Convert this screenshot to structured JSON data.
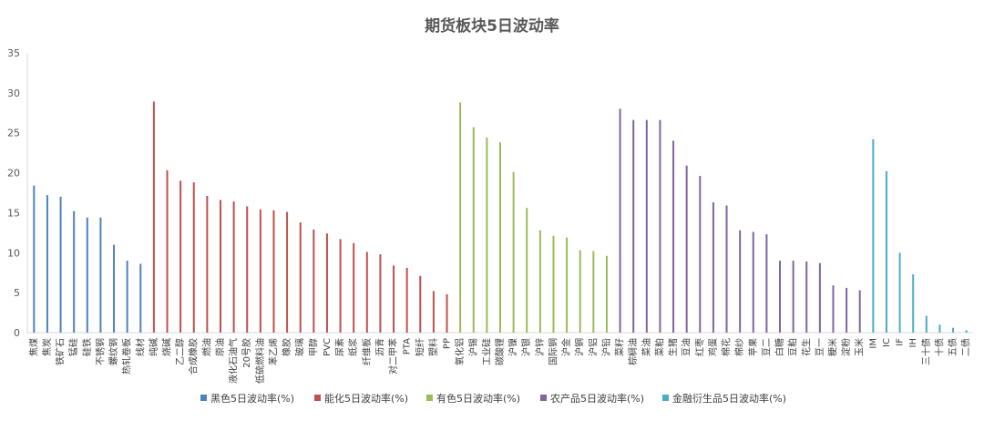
{
  "chart_data": {
    "type": "bar",
    "title": "期货板块5日波动率",
    "xlabel": "",
    "ylabel": "",
    "ylim": [
      0,
      35
    ],
    "yticks": [
      0,
      5,
      10,
      15,
      20,
      25,
      30,
      35
    ],
    "grid": false,
    "legend_position": "bottom",
    "series": [
      {
        "name": "黑色5日波动率(%)",
        "color": "#4F81BD",
        "categories": [
          "焦煤",
          "焦炭",
          "铁矿石",
          "锰硅",
          "硅铁",
          "不锈钢",
          "螺纹钢",
          "热轧卷板",
          "线材"
        ],
        "values": [
          18.4,
          17.2,
          17.0,
          15.2,
          14.4,
          14.4,
          11.0,
          9.0,
          8.6
        ]
      },
      {
        "name": "能化5日波动率(%)",
        "color": "#C0504D",
        "categories": [
          "纯碱",
          "烧碱",
          "乙二醇",
          "合成橡胶",
          "燃油",
          "原油",
          "液化石油气",
          "20号胶",
          "低硫燃料油",
          "苯乙烯",
          "橡胶",
          "玻璃",
          "甲醇",
          "PVC",
          "尿素",
          "纸浆",
          "纤维板",
          "沥青",
          "对二甲苯",
          "PTA",
          "短纤",
          "塑料",
          "PP"
        ],
        "values": [
          28.9,
          20.3,
          19.0,
          18.8,
          17.1,
          16.6,
          16.4,
          15.8,
          15.4,
          15.3,
          15.1,
          13.8,
          12.9,
          12.4,
          11.7,
          11.2,
          10.1,
          9.8,
          8.4,
          8.1,
          7.1,
          5.2,
          4.8
        ]
      },
      {
        "name": "有色5日波动率(%)",
        "color": "#9BBB59",
        "categories": [
          "氧化铝",
          "沪锡",
          "工业硅",
          "碳酸锂",
          "沪镍",
          "沪银",
          "沪锌",
          "国际铜",
          "沪金",
          "沪铜",
          "沪铝",
          "沪铅"
        ],
        "values": [
          28.8,
          25.7,
          24.4,
          23.8,
          20.1,
          15.6,
          12.8,
          12.1,
          11.9,
          10.3,
          10.2,
          9.6
        ]
      },
      {
        "name": "农产品5日波动率(%)",
        "color": "#8064A2",
        "categories": [
          "菜籽",
          "棕榈油",
          "菜油",
          "菜粕",
          "生猪",
          "豆油",
          "红枣",
          "鸡蛋",
          "棉花",
          "棉纱",
          "苹果",
          "豆二",
          "白糖",
          "豆粕",
          "花生",
          "豆一",
          "粳米",
          "淀粉",
          "玉米"
        ],
        "values": [
          28.0,
          26.6,
          26.6,
          26.6,
          24.0,
          20.9,
          19.6,
          16.3,
          15.9,
          12.8,
          12.6,
          12.3,
          9.0,
          9.0,
          8.9,
          8.7,
          5.9,
          5.6,
          5.3
        ]
      },
      {
        "name": "金融衍生品5日波动率(%)",
        "color": "#4BACC6",
        "categories": [
          "IM",
          "IC",
          "IF",
          "IH",
          "三十债",
          "十债",
          "五债",
          "二债"
        ],
        "values": [
          24.2,
          20.2,
          10.0,
          7.3,
          2.1,
          1.0,
          0.6,
          0.3
        ]
      }
    ]
  }
}
